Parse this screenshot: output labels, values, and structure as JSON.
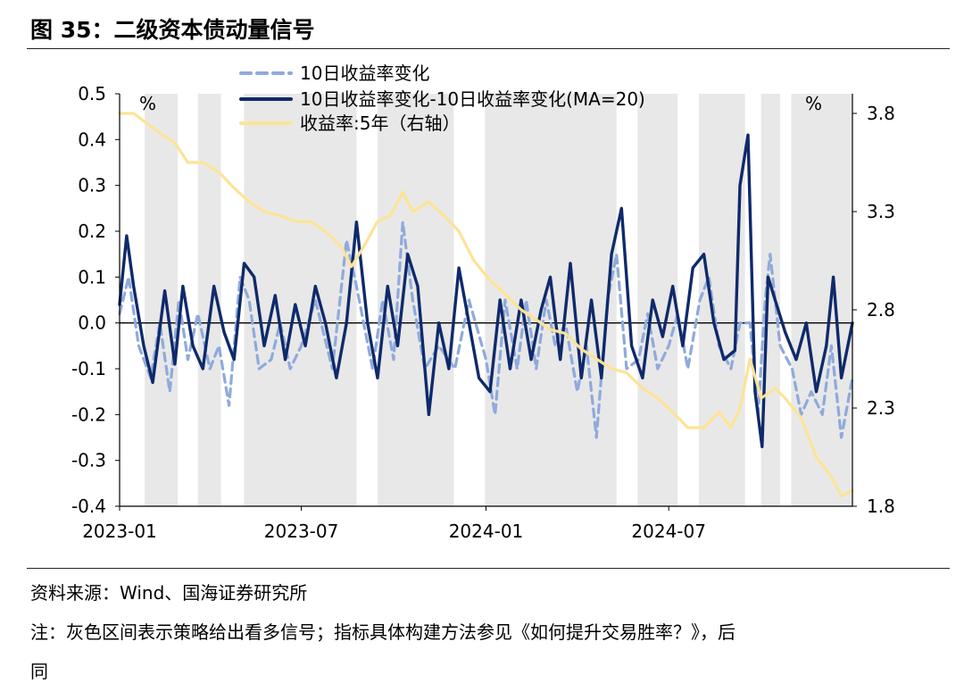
{
  "figure": {
    "title": "图 35：二级资本债动量信号",
    "source": "资料来源：Wind、国海证券研究所",
    "note": "注：灰色区间表示策略给出看多信号；指标具体构建方法参见《如何提升交易胜率？》，后",
    "note_cont": "同"
  },
  "chart_data": {
    "type": "line",
    "x_range": [
      "2023-01-01",
      "2024-12-31"
    ],
    "x_ticks": [
      "2023-01",
      "2023-07",
      "2024-01",
      "2024-07"
    ],
    "left_axis": {
      "unit_label": "%",
      "ylim": [
        -0.4,
        0.5
      ],
      "ticks": [
        "0.5",
        "0.4",
        "0.3",
        "0.2",
        "0.1",
        "0.0",
        "-0.1",
        "-0.2",
        "-0.3",
        "-0.4"
      ]
    },
    "right_axis": {
      "unit_label": "%",
      "ylim": [
        1.8,
        3.9
      ],
      "ticks": [
        "3.8",
        "3.3",
        "2.8",
        "2.3",
        "1.8"
      ]
    },
    "legend": {
      "position": "top"
    },
    "shaded_signal_periods": [
      [
        "2023-01-26",
        "2023-02-28"
      ],
      [
        "2023-03-20",
        "2023-04-12"
      ],
      [
        "2023-05-05",
        "2023-08-25"
      ],
      [
        "2023-09-15",
        "2023-11-30"
      ],
      [
        "2023-12-31",
        "2024-05-10"
      ],
      [
        "2024-05-31",
        "2024-07-10"
      ],
      [
        "2024-07-31",
        "2024-09-15"
      ],
      [
        "2024-10-01",
        "2024-10-20"
      ],
      [
        "2024-10-31",
        "2024-12-31"
      ]
    ],
    "series": [
      {
        "name": "10日收益率变化",
        "axis": "left",
        "color": "#8faadc",
        "style": "dashed",
        "points": [
          [
            "2023-01-01",
            0.02
          ],
          [
            "2023-01-10",
            0.1
          ],
          [
            "2023-01-20",
            -0.05
          ],
          [
            "2023-02-01",
            -0.12
          ],
          [
            "2023-02-10",
            0.0
          ],
          [
            "2023-02-20",
            -0.15
          ],
          [
            "2023-03-01",
            0.05
          ],
          [
            "2023-03-10",
            -0.08
          ],
          [
            "2023-03-20",
            0.02
          ],
          [
            "2023-04-01",
            -0.1
          ],
          [
            "2023-04-10",
            -0.05
          ],
          [
            "2023-04-20",
            -0.18
          ],
          [
            "2023-05-01",
            0.1
          ],
          [
            "2023-05-10",
            0.05
          ],
          [
            "2023-05-20",
            -0.1
          ],
          [
            "2023-06-01",
            -0.08
          ],
          [
            "2023-06-10",
            0.0
          ],
          [
            "2023-06-20",
            -0.1
          ],
          [
            "2023-07-01",
            -0.05
          ],
          [
            "2023-07-15",
            0.05
          ],
          [
            "2023-08-01",
            -0.1
          ],
          [
            "2023-08-15",
            0.18
          ],
          [
            "2023-08-25",
            0.08
          ],
          [
            "2023-09-10",
            -0.1
          ],
          [
            "2023-09-20",
            0.05
          ],
          [
            "2023-10-01",
            -0.08
          ],
          [
            "2023-10-10",
            0.22
          ],
          [
            "2023-10-20",
            0.05
          ],
          [
            "2023-11-01",
            -0.1
          ],
          [
            "2023-11-15",
            -0.05
          ],
          [
            "2023-12-01",
            -0.1
          ],
          [
            "2023-12-15",
            0.05
          ],
          [
            "2024-01-01",
            -0.08
          ],
          [
            "2024-01-10",
            -0.2
          ],
          [
            "2024-01-20",
            0.05
          ],
          [
            "2024-02-01",
            -0.1
          ],
          [
            "2024-02-10",
            0.05
          ],
          [
            "2024-02-20",
            -0.1
          ],
          [
            "2024-03-01",
            0.05
          ],
          [
            "2024-03-10",
            -0.05
          ],
          [
            "2024-03-20",
            0.0
          ],
          [
            "2024-04-01",
            -0.15
          ],
          [
            "2024-04-10",
            -0.05
          ],
          [
            "2024-04-20",
            -0.25
          ],
          [
            "2024-05-01",
            0.05
          ],
          [
            "2024-05-10",
            0.15
          ],
          [
            "2024-05-20",
            -0.1
          ],
          [
            "2024-06-01",
            -0.08
          ],
          [
            "2024-06-10",
            0.02
          ],
          [
            "2024-06-20",
            -0.1
          ],
          [
            "2024-07-01",
            -0.05
          ],
          [
            "2024-07-10",
            0.02
          ],
          [
            "2024-07-20",
            -0.1
          ],
          [
            "2024-08-01",
            0.05
          ],
          [
            "2024-08-10",
            0.1
          ],
          [
            "2024-08-20",
            -0.05
          ],
          [
            "2024-09-01",
            -0.1
          ],
          [
            "2024-09-10",
            0.0
          ],
          [
            "2024-09-20",
            0.0
          ],
          [
            "2024-09-28",
            -0.2
          ],
          [
            "2024-10-05",
            0.05
          ],
          [
            "2024-10-10",
            0.15
          ],
          [
            "2024-10-20",
            -0.05
          ],
          [
            "2024-11-01",
            -0.1
          ],
          [
            "2024-11-10",
            -0.2
          ],
          [
            "2024-11-20",
            -0.15
          ],
          [
            "2024-12-01",
            -0.2
          ],
          [
            "2024-12-10",
            -0.05
          ],
          [
            "2024-12-20",
            -0.25
          ],
          [
            "2024-12-31",
            -0.12
          ]
        ]
      },
      {
        "name": "10日收益率变化-10日收益率变化(MA=20)",
        "axis": "left",
        "color": "#0f2a6b",
        "style": "solid",
        "points": [
          [
            "2023-01-01",
            0.04
          ],
          [
            "2023-01-08",
            0.19
          ],
          [
            "2023-01-15",
            0.08
          ],
          [
            "2023-01-25",
            -0.05
          ],
          [
            "2023-02-03",
            -0.13
          ],
          [
            "2023-02-15",
            0.07
          ],
          [
            "2023-02-25",
            -0.09
          ],
          [
            "2023-03-05",
            0.08
          ],
          [
            "2023-03-15",
            -0.05
          ],
          [
            "2023-03-25",
            -0.1
          ],
          [
            "2023-04-05",
            0.08
          ],
          [
            "2023-04-15",
            -0.02
          ],
          [
            "2023-04-25",
            -0.08
          ],
          [
            "2023-05-05",
            0.13
          ],
          [
            "2023-05-15",
            0.1
          ],
          [
            "2023-05-25",
            -0.05
          ],
          [
            "2023-06-05",
            0.06
          ],
          [
            "2023-06-15",
            -0.08
          ],
          [
            "2023-06-25",
            0.04
          ],
          [
            "2023-07-05",
            -0.05
          ],
          [
            "2023-07-15",
            0.08
          ],
          [
            "2023-07-25",
            0.0
          ],
          [
            "2023-08-05",
            -0.12
          ],
          [
            "2023-08-15",
            0.0
          ],
          [
            "2023-08-25",
            0.22
          ],
          [
            "2023-09-05",
            0.0
          ],
          [
            "2023-09-15",
            -0.12
          ],
          [
            "2023-09-25",
            0.08
          ],
          [
            "2023-10-05",
            -0.05
          ],
          [
            "2023-10-15",
            0.15
          ],
          [
            "2023-10-25",
            0.08
          ],
          [
            "2023-11-05",
            -0.2
          ],
          [
            "2023-11-15",
            0.0
          ],
          [
            "2023-11-25",
            -0.1
          ],
          [
            "2023-12-05",
            0.12
          ],
          [
            "2023-12-15",
            0.0
          ],
          [
            "2023-12-25",
            -0.12
          ],
          [
            "2024-01-05",
            -0.15
          ],
          [
            "2024-01-15",
            0.05
          ],
          [
            "2024-01-25",
            -0.1
          ],
          [
            "2024-02-05",
            0.05
          ],
          [
            "2024-02-15",
            -0.08
          ],
          [
            "2024-02-25",
            0.03
          ],
          [
            "2024-03-05",
            0.1
          ],
          [
            "2024-03-15",
            -0.08
          ],
          [
            "2024-03-25",
            0.13
          ],
          [
            "2024-04-05",
            -0.12
          ],
          [
            "2024-04-15",
            0.05
          ],
          [
            "2024-04-25",
            -0.12
          ],
          [
            "2024-05-05",
            0.15
          ],
          [
            "2024-05-15",
            0.25
          ],
          [
            "2024-05-25",
            -0.05
          ],
          [
            "2024-06-05",
            -0.12
          ],
          [
            "2024-06-15",
            0.05
          ],
          [
            "2024-06-25",
            -0.03
          ],
          [
            "2024-07-05",
            0.08
          ],
          [
            "2024-07-15",
            -0.05
          ],
          [
            "2024-07-25",
            0.12
          ],
          [
            "2024-08-05",
            0.15
          ],
          [
            "2024-08-15",
            0.0
          ],
          [
            "2024-08-25",
            -0.08
          ],
          [
            "2024-09-05",
            -0.06
          ],
          [
            "2024-09-10",
            0.3
          ],
          [
            "2024-09-18",
            0.41
          ],
          [
            "2024-09-25",
            -0.15
          ],
          [
            "2024-10-02",
            -0.27
          ],
          [
            "2024-10-08",
            0.1
          ],
          [
            "2024-10-15",
            0.05
          ],
          [
            "2024-10-25",
            -0.02
          ],
          [
            "2024-11-05",
            -0.08
          ],
          [
            "2024-11-15",
            0.0
          ],
          [
            "2024-11-25",
            -0.15
          ],
          [
            "2024-12-05",
            -0.05
          ],
          [
            "2024-12-12",
            0.1
          ],
          [
            "2024-12-20",
            -0.12
          ],
          [
            "2024-12-31",
            0.0
          ]
        ]
      },
      {
        "name": "收益率:5年（右轴）",
        "axis": "right",
        "color": "#fde396",
        "style": "solid",
        "points": [
          [
            "2023-01-01",
            3.8
          ],
          [
            "2023-01-15",
            3.8
          ],
          [
            "2023-01-28",
            3.75
          ],
          [
            "2023-02-10",
            3.7
          ],
          [
            "2023-02-25",
            3.65
          ],
          [
            "2023-03-10",
            3.55
          ],
          [
            "2023-03-25",
            3.55
          ],
          [
            "2023-04-10",
            3.5
          ],
          [
            "2023-04-25",
            3.42
          ],
          [
            "2023-05-10",
            3.35
          ],
          [
            "2023-05-25",
            3.3
          ],
          [
            "2023-06-10",
            3.28
          ],
          [
            "2023-06-25",
            3.25
          ],
          [
            "2023-07-10",
            3.25
          ],
          [
            "2023-07-25",
            3.2
          ],
          [
            "2023-08-10",
            3.12
          ],
          [
            "2023-08-20",
            3.02
          ],
          [
            "2023-09-01",
            3.12
          ],
          [
            "2023-09-15",
            3.25
          ],
          [
            "2023-09-28",
            3.28
          ],
          [
            "2023-10-10",
            3.4
          ],
          [
            "2023-10-20",
            3.3
          ],
          [
            "2023-11-05",
            3.35
          ],
          [
            "2023-11-20",
            3.28
          ],
          [
            "2023-12-05",
            3.2
          ],
          [
            "2023-12-20",
            3.05
          ],
          [
            "2024-01-05",
            2.95
          ],
          [
            "2024-01-20",
            2.88
          ],
          [
            "2024-02-05",
            2.8
          ],
          [
            "2024-02-20",
            2.75
          ],
          [
            "2024-03-05",
            2.7
          ],
          [
            "2024-03-20",
            2.68
          ],
          [
            "2024-04-05",
            2.6
          ],
          [
            "2024-04-20",
            2.55
          ],
          [
            "2024-05-05",
            2.5
          ],
          [
            "2024-05-20",
            2.48
          ],
          [
            "2024-06-05",
            2.4
          ],
          [
            "2024-06-20",
            2.35
          ],
          [
            "2024-07-05",
            2.28
          ],
          [
            "2024-07-20",
            2.2
          ],
          [
            "2024-08-05",
            2.2
          ],
          [
            "2024-08-20",
            2.28
          ],
          [
            "2024-09-01",
            2.2
          ],
          [
            "2024-09-10",
            2.3
          ],
          [
            "2024-09-20",
            2.55
          ],
          [
            "2024-10-01",
            2.35
          ],
          [
            "2024-10-15",
            2.4
          ],
          [
            "2024-10-25",
            2.35
          ],
          [
            "2024-11-10",
            2.25
          ],
          [
            "2024-11-25",
            2.05
          ],
          [
            "2024-12-10",
            1.95
          ],
          [
            "2024-12-20",
            1.85
          ],
          [
            "2024-12-31",
            1.88
          ]
        ]
      }
    ]
  }
}
